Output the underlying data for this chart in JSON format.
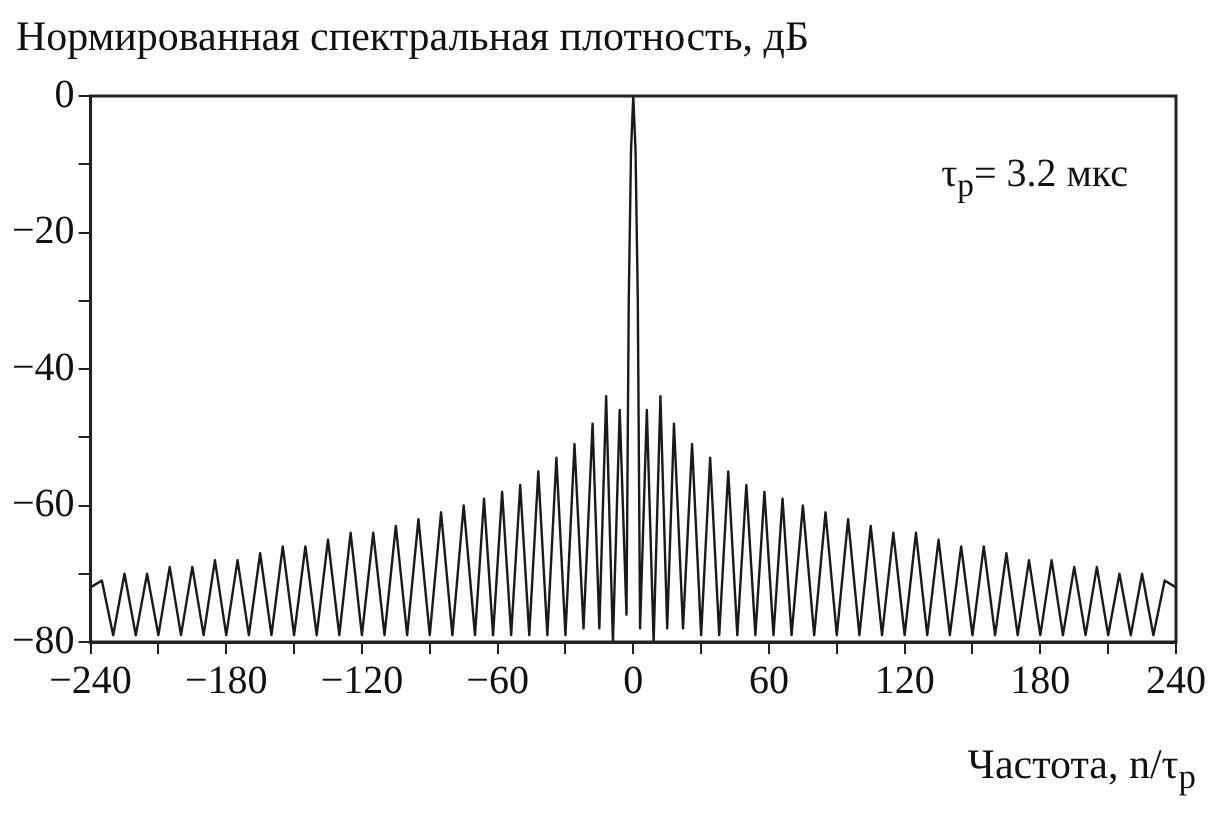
{
  "chart_data": {
    "type": "line",
    "ylabel": "Нормированная спектральная плотность, дБ",
    "xlabel": "Частота, n/τ$_{p}$",
    "annotations": [
      "τ$_{p}$= 3.2 мкс"
    ],
    "x": [
      -240,
      -235,
      -230,
      -225,
      -220,
      -215,
      -210,
      -205,
      -200,
      -195,
      -190,
      -185,
      -180,
      -175,
      -170,
      -165,
      -160,
      -155,
      -150,
      -145,
      -140,
      -135,
      -130,
      -125,
      -120,
      -115,
      -110,
      -105,
      -100,
      -95,
      -90,
      -85,
      -80,
      -75,
      -70,
      -66,
      -62,
      -58,
      -54,
      -50,
      -46,
      -42,
      -38,
      -34,
      -30,
      -26,
      -22,
      -18,
      -15,
      -12,
      -9,
      -6,
      -3,
      -2,
      -1,
      0,
      1,
      2,
      3,
      6,
      9,
      12,
      15,
      18,
      22,
      26,
      30,
      34,
      38,
      42,
      46,
      50,
      54,
      58,
      62,
      66,
      70,
      75,
      80,
      85,
      90,
      95,
      100,
      105,
      110,
      115,
      120,
      125,
      130,
      135,
      140,
      145,
      150,
      155,
      160,
      165,
      170,
      175,
      180,
      185,
      190,
      195,
      200,
      205,
      210,
      215,
      220,
      225,
      230,
      235,
      240
    ],
    "series": [
      {
        "color": "#1a1a1a",
        "values": [
          -72,
          -71,
          -79,
          -70,
          -79,
          -70,
          -79,
          -69,
          -79,
          -69,
          -79,
          -68,
          -79,
          -68,
          -79,
          -67,
          -79,
          -66,
          -79,
          -66,
          -79,
          -65,
          -79,
          -64,
          -79,
          -64,
          -79,
          -63,
          -79,
          -62,
          -79,
          -61,
          -79,
          -60,
          -79,
          -59,
          -79,
          -58,
          -79,
          -57,
          -79,
          -55,
          -79,
          -53,
          -79,
          -51,
          -78,
          -48,
          -78,
          -44,
          -80,
          -46,
          -76,
          -30,
          -8,
          0,
          -8,
          -30,
          -78,
          -46,
          -80,
          -44,
          -78,
          -48,
          -78,
          -51,
          -79,
          -53,
          -79,
          -55,
          -79,
          -57,
          -79,
          -58,
          -79,
          -59,
          -79,
          -60,
          -79,
          -61,
          -79,
          -62,
          -79,
          -63,
          -79,
          -64,
          -79,
          -64,
          -79,
          -65,
          -79,
          -66,
          -79,
          -66,
          -79,
          -67,
          -79,
          -68,
          -79,
          -68,
          -79,
          -69,
          -79,
          -69,
          -79,
          -70,
          -79,
          -70,
          -79,
          -71,
          -72
        ]
      }
    ],
    "xlim": [
      -240,
      240
    ],
    "xticks": [
      {
        "value": -240,
        "label": "−240"
      },
      {
        "value": -210,
        "label": null
      },
      {
        "value": -180,
        "label": "−180"
      },
      {
        "value": -150,
        "label": null
      },
      {
        "value": -120,
        "label": "−120"
      },
      {
        "value": -90,
        "label": null
      },
      {
        "value": -60,
        "label": "−60"
      },
      {
        "value": -30,
        "label": null
      },
      0,
      {
        "value": 30,
        "label": null
      },
      60,
      {
        "value": 90,
        "label": null
      },
      120,
      {
        "value": 150,
        "label": null
      },
      180,
      {
        "value": 210,
        "label": null
      },
      240
    ],
    "ylim": [
      -80,
      0
    ],
    "yticks": [
      {
        "value": -80,
        "label": "−80"
      },
      {
        "value": -70,
        "label": null
      },
      {
        "value": -60,
        "label": "−60"
      },
      {
        "value": -50,
        "label": null
      },
      {
        "value": -40,
        "label": "−40"
      },
      {
        "value": -30,
        "label": null
      },
      {
        "value": -20,
        "label": "−20"
      },
      {
        "value": -10,
        "label": null
      },
      0
    ],
    "grid": false,
    "legend": false,
    "marker": "none",
    "line_style": "solid"
  }
}
